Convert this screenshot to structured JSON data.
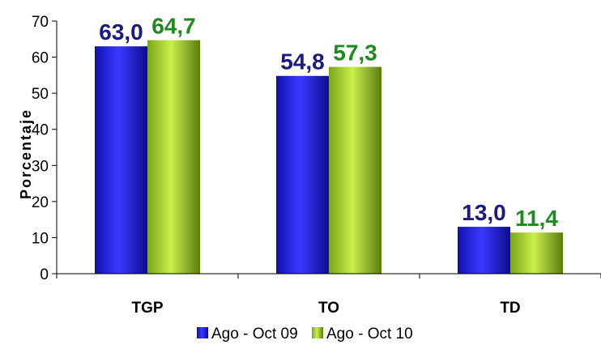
{
  "chart_data": {
    "type": "bar",
    "title": "",
    "xlabel": "",
    "ylabel": "Porcentaje",
    "categories": [
      "TGP",
      "TO",
      "TD"
    ],
    "ylim": [
      0,
      70
    ],
    "yticks": [
      0,
      10,
      20,
      30,
      40,
      50,
      60,
      70
    ],
    "grid": false,
    "legend_position": "bottom",
    "series": [
      {
        "name": "Ago - Oct 09",
        "values": [
          63.0,
          54.8,
          13.0
        ],
        "labels": [
          "63,0",
          "54,8",
          "13,0"
        ],
        "color": "#1a1acc",
        "label_color": "#1a1a80"
      },
      {
        "name": "Ago - Oct 10",
        "values": [
          64.7,
          57.3,
          11.4
        ],
        "labels": [
          "64,7",
          "57,3",
          "11,4"
        ],
        "color": "#9acd32",
        "label_color": "#1f8a1f"
      }
    ]
  }
}
